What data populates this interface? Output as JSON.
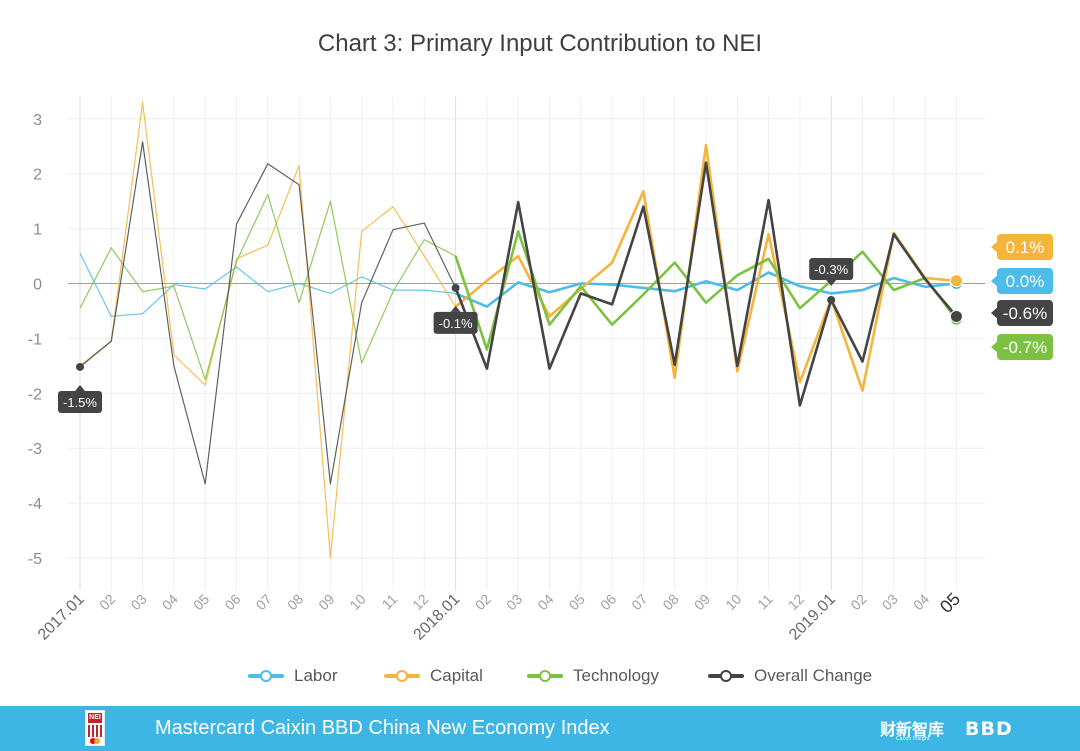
{
  "title": "Chart 3: Primary Input Contribution to NEI",
  "chart_data": {
    "type": "line",
    "title": "Chart 3: Primary Input Contribution to NEI",
    "xlabel": "",
    "ylabel": "",
    "ylim": [
      -5.5,
      3.5
    ],
    "yticks": [
      3,
      2,
      1,
      0,
      -1,
      -2,
      -3,
      -4,
      -5
    ],
    "zero_line": true,
    "grid": true,
    "legend_position": "bottom",
    "x": [
      "2017.01",
      "02",
      "03",
      "04",
      "05",
      "06",
      "07",
      "08",
      "09",
      "10",
      "11",
      "12",
      "2018.01",
      "02",
      "03",
      "04",
      "05",
      "06",
      "07",
      "08",
      "09",
      "10",
      "11",
      "12",
      "2019.01",
      "02",
      "03",
      "04",
      "05"
    ],
    "series": [
      {
        "name": "Labor",
        "color": "#4dbce9",
        "values": [
          0.55,
          -0.6,
          -0.55,
          -0.02,
          -0.1,
          0.3,
          -0.15,
          0.0,
          -0.18,
          0.12,
          -0.12,
          -0.12,
          -0.18,
          -0.42,
          0.02,
          -0.16,
          0.0,
          -0.02,
          -0.08,
          -0.14,
          0.04,
          -0.12,
          0.2,
          -0.05,
          -0.18,
          -0.12,
          0.1,
          -0.06,
          0.0
        ]
      },
      {
        "name": "Capital",
        "color": "#f5b43a",
        "values": [
          -1.5,
          -1.05,
          3.3,
          -1.3,
          -1.85,
          0.45,
          0.7,
          2.15,
          -5.0,
          0.95,
          1.4,
          0.5,
          -0.42,
          0.05,
          0.5,
          -0.6,
          -0.1,
          0.38,
          1.68,
          -1.72,
          2.52,
          -1.6,
          0.9,
          -1.8,
          -0.28,
          -1.95,
          0.92,
          0.1,
          0.05
        ]
      },
      {
        "name": "Technology",
        "color": "#7cc242",
        "values": [
          -0.45,
          0.65,
          -0.15,
          -0.05,
          -1.75,
          0.4,
          1.62,
          -0.35,
          1.5,
          -1.45,
          -0.15,
          0.8,
          0.5,
          -1.2,
          0.95,
          -0.75,
          -0.05,
          -0.75,
          -0.2,
          0.38,
          -0.35,
          0.15,
          0.45,
          -0.45,
          0.05,
          0.58,
          -0.12,
          0.1,
          -0.65
        ]
      },
      {
        "name": "Overall Change",
        "color": "#444444",
        "values": [
          -1.52,
          -1.05,
          2.58,
          -1.5,
          -3.65,
          1.08,
          2.18,
          1.8,
          -3.65,
          -0.35,
          0.98,
          1.1,
          -0.08,
          -1.55,
          1.48,
          -1.55,
          -0.18,
          -0.38,
          1.4,
          -1.48,
          2.2,
          -1.5,
          1.52,
          -2.22,
          -0.3,
          -1.42,
          0.9,
          0.08,
          -0.6
        ]
      }
    ],
    "callouts": [
      {
        "label": "-1.5%",
        "index": 0
      },
      {
        "label": "-0.1%",
        "index": 12
      },
      {
        "label": "-0.3%",
        "index": 24
      }
    ],
    "end_labels": [
      {
        "label": "0.1%",
        "series": "Capital"
      },
      {
        "label": "0.0%",
        "series": "Labor"
      },
      {
        "label": "-0.6%",
        "series": "Overall Change"
      },
      {
        "label": "-0.7%",
        "series": "Technology"
      }
    ]
  },
  "legend": [
    {
      "label": "Labor",
      "color": "#4dbce9"
    },
    {
      "label": "Capital",
      "color": "#f5b43a"
    },
    {
      "label": "Technology",
      "color": "#7cc242"
    },
    {
      "label": "Overall Change",
      "color": "#444444"
    }
  ],
  "footer": {
    "title": "Mastercard Caixin BBD China New Economy Index",
    "logo_text": "NEI",
    "brand_cn": "财新智库",
    "brand_cn_sub": "Caixin Insight",
    "brand_bbd": "BBD",
    "bg_color": "#3db6e6"
  }
}
